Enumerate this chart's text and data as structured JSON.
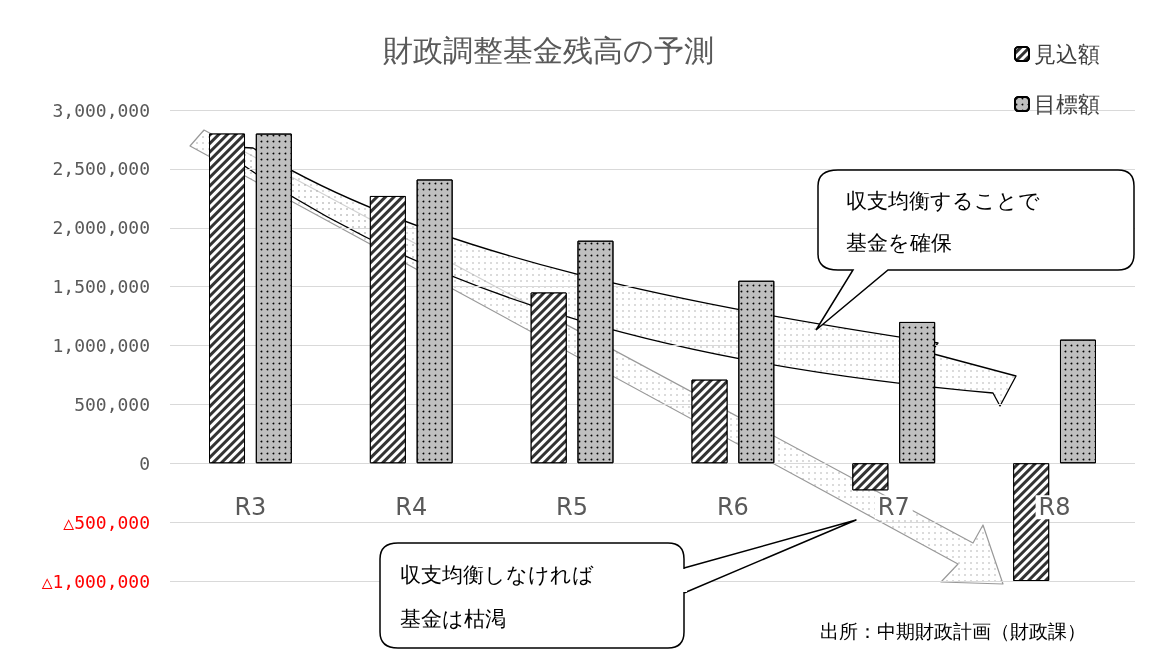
{
  "chart_data": {
    "type": "bar",
    "title": "財政調整基金残高の予測",
    "categories": [
      "R3",
      "R4",
      "R5",
      "R6",
      "R7",
      "R8"
    ],
    "series": [
      {
        "name": "見込額",
        "color": "#333333",
        "values": [
          2800000,
          2270000,
          1450000,
          710000,
          -230000,
          -1000000
        ]
      },
      {
        "name": "目標額",
        "color": "#bfbfbf",
        "values": [
          2800000,
          2410000,
          1890000,
          1550000,
          1200000,
          1050000
        ]
      }
    ],
    "ylim": [
      -1000000,
      3000000
    ],
    "yticks": [
      {
        "value": -1000000,
        "label": "△1,000,000"
      },
      {
        "value": -500000,
        "label": "△500,000"
      },
      0,
      {
        "value": 500000,
        "label": "500,000"
      },
      {
        "value": 1000000,
        "label": "1,000,000"
      },
      {
        "value": 1500000,
        "label": "1,500,000"
      },
      {
        "value": 2000000,
        "label": "2,000,000"
      },
      {
        "value": 2500000,
        "label": "2,500,000"
      },
      {
        "value": 3000000,
        "label": "3,000,000"
      }
    ],
    "grid": "y",
    "legend": "top right",
    "annotations": [
      "収支均衡することで基金を確保",
      "収支均衡しなければ基金は枯渇",
      "出所：中期財政計画（財政課）"
    ]
  }
}
